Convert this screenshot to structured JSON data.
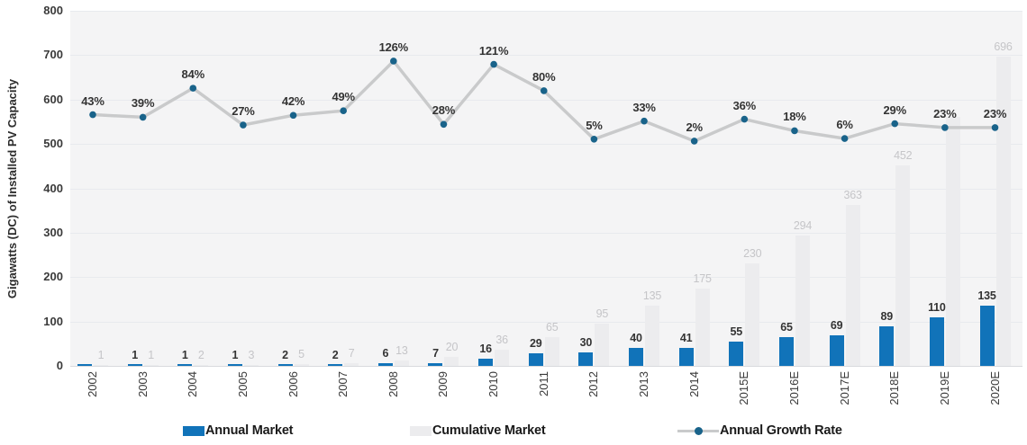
{
  "chart_data": {
    "type": "bar+line combo",
    "title": "",
    "ylabel": "Gigawatts (DC) of Installed PV Capacity",
    "ylim": [
      0,
      800
    ],
    "y_ticks": [
      0,
      100,
      200,
      300,
      400,
      500,
      600,
      700,
      800
    ],
    "grid": "horizontal gridlines on, light gray plot background",
    "legend_position": "bottom",
    "categories": [
      "2002",
      "2003",
      "2004",
      "2005",
      "2006",
      "2007",
      "2008",
      "2009",
      "2010",
      "2011",
      "2012",
      "2013",
      "2014",
      "2015E",
      "2016E",
      "2017E",
      "2018E",
      "2019E",
      "2020E"
    ],
    "series": [
      {
        "name": "Annual Market",
        "type": "bar",
        "color": "#1173b9",
        "values": [
          0.4,
          1,
          1,
          1,
          2,
          2,
          6,
          7,
          16,
          29,
          30,
          40,
          41,
          55,
          65,
          69,
          89,
          110,
          135
        ],
        "labels": [
          "",
          "1",
          "1",
          "1",
          "2",
          "2",
          "6",
          "7",
          "16",
          "29",
          "30",
          "40",
          "41",
          "55",
          "65",
          "69",
          "89",
          "110",
          "135"
        ]
      },
      {
        "name": "Cumulative Market",
        "type": "bar",
        "color": "#ececee",
        "label_color": "#c5c5c8",
        "values": [
          1,
          1,
          2,
          3,
          5,
          7,
          13,
          20,
          36,
          65,
          95,
          135,
          175,
          230,
          294,
          363,
          452,
          562,
          696
        ],
        "labels": [
          "1",
          "1",
          "2",
          "3",
          "5",
          "7",
          "13",
          "20",
          "36",
          "65",
          "95",
          "135",
          "175",
          "230",
          "294",
          "363",
          "452",
          "",
          "696"
        ]
      },
      {
        "name": "Annual Growth Rate",
        "type": "line",
        "line_color": "#c9cacb",
        "marker_color": "#19638a",
        "unit": "%",
        "values": [
          43,
          39,
          84,
          27,
          42,
          49,
          126,
          28,
          121,
          80,
          5,
          33,
          2,
          36,
          18,
          6,
          29,
          23,
          23
        ],
        "labels": [
          "43%",
          "39%",
          "84%",
          "27%",
          "42%",
          "49%",
          "126%",
          "28%",
          "121%",
          "80%",
          "5%",
          "33%",
          "2%",
          "36%",
          "18%",
          "6%",
          "29%",
          "23%",
          "23%"
        ]
      }
    ]
  }
}
